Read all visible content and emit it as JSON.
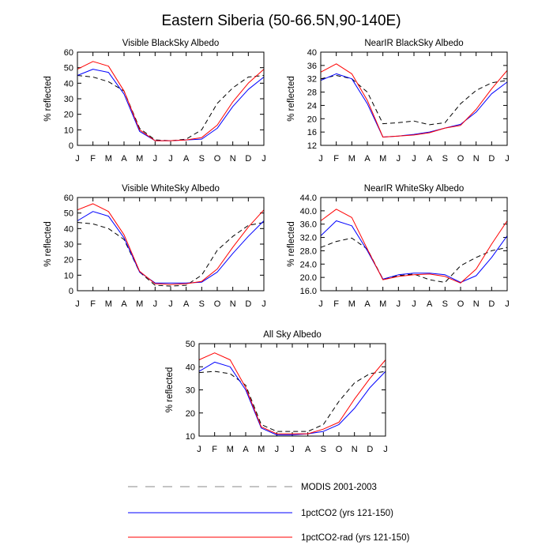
{
  "figure": {
    "title": "Eastern Siberia (50-66.5N,90-140E)"
  },
  "legend": [
    {
      "label": "MODIS 2001-2003",
      "color": "#000000",
      "style": "dashed"
    },
    {
      "label": "1pctCO2 (yrs 121-150)",
      "color": "#0000ff",
      "style": "solid"
    },
    {
      "label": "1pctCO2-rad (yrs 121-150)",
      "color": "#ff0000",
      "style": "solid"
    }
  ],
  "chart_data": [
    {
      "type": "line",
      "title": "Visible BlackSky Albedo",
      "xlabel": "",
      "ylabel": "% reflected",
      "categories": [
        "J",
        "F",
        "M",
        "A",
        "M",
        "J",
        "J",
        "A",
        "S",
        "O",
        "N",
        "D",
        "J"
      ],
      "ylim": [
        0,
        60
      ],
      "yticks": [
        "0",
        "10",
        "20",
        "30",
        "40",
        "50",
        "60"
      ],
      "series": [
        {
          "name": "MODIS 2001-2003",
          "values": [
            45,
            44,
            41,
            35,
            11,
            3.5,
            3,
            4,
            10,
            27,
            37,
            44,
            45
          ]
        },
        {
          "name": "1pctCO2 (yrs 121-150)",
          "values": [
            45,
            49,
            47,
            33,
            9,
            3,
            3,
            3.5,
            4,
            11,
            25,
            36,
            44
          ]
        },
        {
          "name": "1pctCO2-rad (yrs 121-150)",
          "values": [
            49,
            54,
            51,
            35,
            10,
            3,
            3,
            3.5,
            5,
            13,
            28,
            40,
            49
          ]
        }
      ]
    },
    {
      "type": "line",
      "title": "NearIR BlackSky Albedo",
      "xlabel": "",
      "ylabel": "% reflected",
      "categories": [
        "J",
        "F",
        "M",
        "A",
        "M",
        "J",
        "J",
        "A",
        "S",
        "O",
        "N",
        "D",
        "J"
      ],
      "ylim": [
        12,
        40
      ],
      "yticks": [
        "12",
        "16",
        "20",
        "24",
        "28",
        "32",
        "36",
        "40"
      ],
      "series": [
        {
          "name": "MODIS 2001-2003",
          "values": [
            32,
            33,
            32,
            28,
            18.5,
            18.8,
            19.3,
            18.2,
            18.8,
            24.5,
            28.5,
            30.8,
            31.5
          ]
        },
        {
          "name": "1pctCO2 (yrs 121-150)",
          "values": [
            31.5,
            33.5,
            32,
            24.5,
            14.5,
            14.8,
            15.3,
            16,
            17.2,
            18.3,
            22,
            27.5,
            31
          ]
        },
        {
          "name": "1pctCO2-rad (yrs 121-150)",
          "values": [
            34,
            36.5,
            33.5,
            25.5,
            14.5,
            14.8,
            15.1,
            15.8,
            17.2,
            18,
            22.8,
            29,
            34.5
          ]
        }
      ]
    },
    {
      "type": "line",
      "title": "Visible WhiteSky Albedo",
      "xlabel": "",
      "ylabel": "% reflected",
      "categories": [
        "J",
        "F",
        "M",
        "A",
        "M",
        "J",
        "J",
        "A",
        "S",
        "O",
        "N",
        "D",
        "J"
      ],
      "ylim": [
        0,
        60
      ],
      "yticks": [
        "0",
        "10",
        "20",
        "30",
        "40",
        "50",
        "60"
      ],
      "series": [
        {
          "name": "MODIS 2001-2003",
          "values": [
            44,
            43,
            40,
            33,
            12,
            3.5,
            3,
            3.5,
            10,
            26,
            35,
            42,
            44
          ]
        },
        {
          "name": "1pctCO2 (yrs 121-150)",
          "values": [
            45,
            51,
            48,
            34,
            12,
            5,
            5,
            5,
            5.5,
            12,
            24,
            35,
            45
          ]
        },
        {
          "name": "1pctCO2-rad (yrs 121-150)",
          "values": [
            52,
            56,
            51,
            36,
            12.5,
            4.5,
            4,
            4.5,
            6,
            14,
            28,
            41,
            52
          ]
        }
      ]
    },
    {
      "type": "line",
      "title": "NearIR WhiteSky Albedo",
      "xlabel": "",
      "ylabel": "% reflected",
      "categories": [
        "J",
        "F",
        "M",
        "A",
        "M",
        "J",
        "J",
        "A",
        "S",
        "O",
        "N",
        "D",
        "J"
      ],
      "ylim": [
        16,
        44
      ],
      "yticks": [
        "16.0",
        "20.0",
        "24.0",
        "28.0",
        "32.0",
        "36.0",
        "40.0",
        "44.0"
      ],
      "series": [
        {
          "name": "MODIS 2001-2003",
          "values": [
            29,
            30.8,
            31.8,
            28.5,
            19.5,
            20.5,
            21,
            19.3,
            18.5,
            23.5,
            26,
            28,
            29
          ]
        },
        {
          "name": "1pctCO2 (yrs 121-150)",
          "values": [
            32.5,
            37,
            35.5,
            28,
            19.5,
            20.8,
            21.3,
            21.3,
            20.8,
            18.5,
            20.5,
            26,
            32.5
          ]
        },
        {
          "name": "1pctCO2-rad (yrs 121-150)",
          "values": [
            37,
            40.5,
            38,
            28.5,
            19.3,
            20.3,
            20.8,
            21,
            20.3,
            18.3,
            22.5,
            30,
            37
          ]
        }
      ]
    },
    {
      "type": "line",
      "title": "All Sky Albedo",
      "xlabel": "",
      "ylabel": "% reflected",
      "categories": [
        "J",
        "F",
        "M",
        "A",
        "M",
        "J",
        "J",
        "A",
        "S",
        "O",
        "N",
        "D",
        "J"
      ],
      "ylim": [
        10,
        50
      ],
      "yticks": [
        "10",
        "20",
        "30",
        "40",
        "50"
      ],
      "series": [
        {
          "name": "MODIS 2001-2003",
          "values": [
            37.5,
            38,
            37,
            32,
            15,
            12,
            12,
            12,
            15,
            25,
            33,
            37,
            38
          ]
        },
        {
          "name": "1pctCO2 (yrs 121-150)",
          "values": [
            38,
            42,
            40,
            30,
            13.5,
            10.5,
            10.5,
            11,
            12,
            15,
            22,
            31,
            38
          ]
        },
        {
          "name": "1pctCO2-rad (yrs 121-150)",
          "values": [
            43,
            46,
            43,
            31,
            14,
            11,
            11,
            11,
            13,
            16,
            26,
            35,
            43
          ]
        }
      ]
    }
  ]
}
